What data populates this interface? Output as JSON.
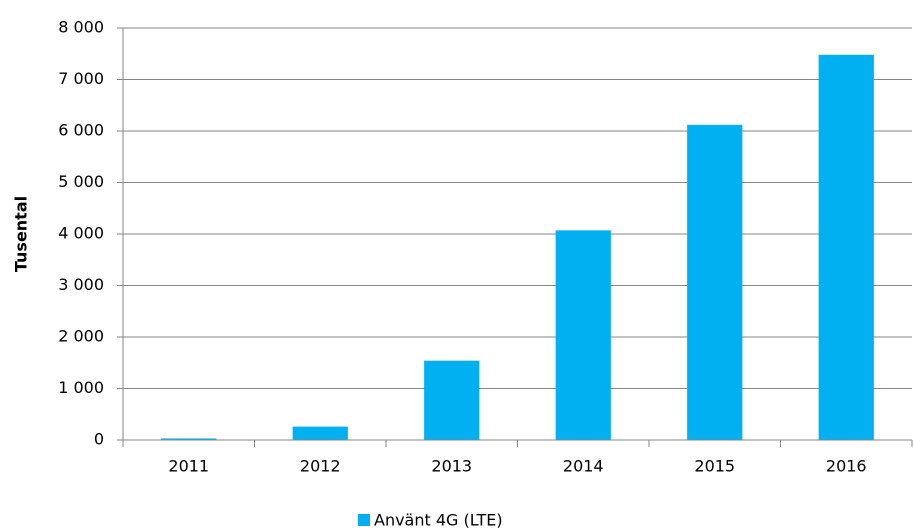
{
  "chart_data": {
    "type": "bar",
    "y_label": "Tusental",
    "categories": [
      "2011",
      "2012",
      "2013",
      "2014",
      "2015",
      "2016"
    ],
    "series": [
      {
        "name": "Använt 4G (LTE)",
        "color": "#00b0f0",
        "values": [
          30,
          260,
          1540,
          4070,
          6120,
          7480
        ]
      }
    ],
    "ylim": [
      0,
      8000
    ],
    "yticks": [
      0,
      {
        "value": 1000,
        "label": "1 000"
      },
      {
        "value": 2000,
        "label": "2 000"
      },
      {
        "value": 3000,
        "label": "3 000"
      },
      {
        "value": 4000,
        "label": "4 000"
      },
      {
        "value": 5000,
        "label": "5 000"
      },
      {
        "value": 6000,
        "label": "6 000"
      },
      {
        "value": 7000,
        "label": "7 000"
      },
      {
        "value": 8000,
        "label": "8 000"
      }
    ],
    "grid": true,
    "legend": "bottom"
  }
}
